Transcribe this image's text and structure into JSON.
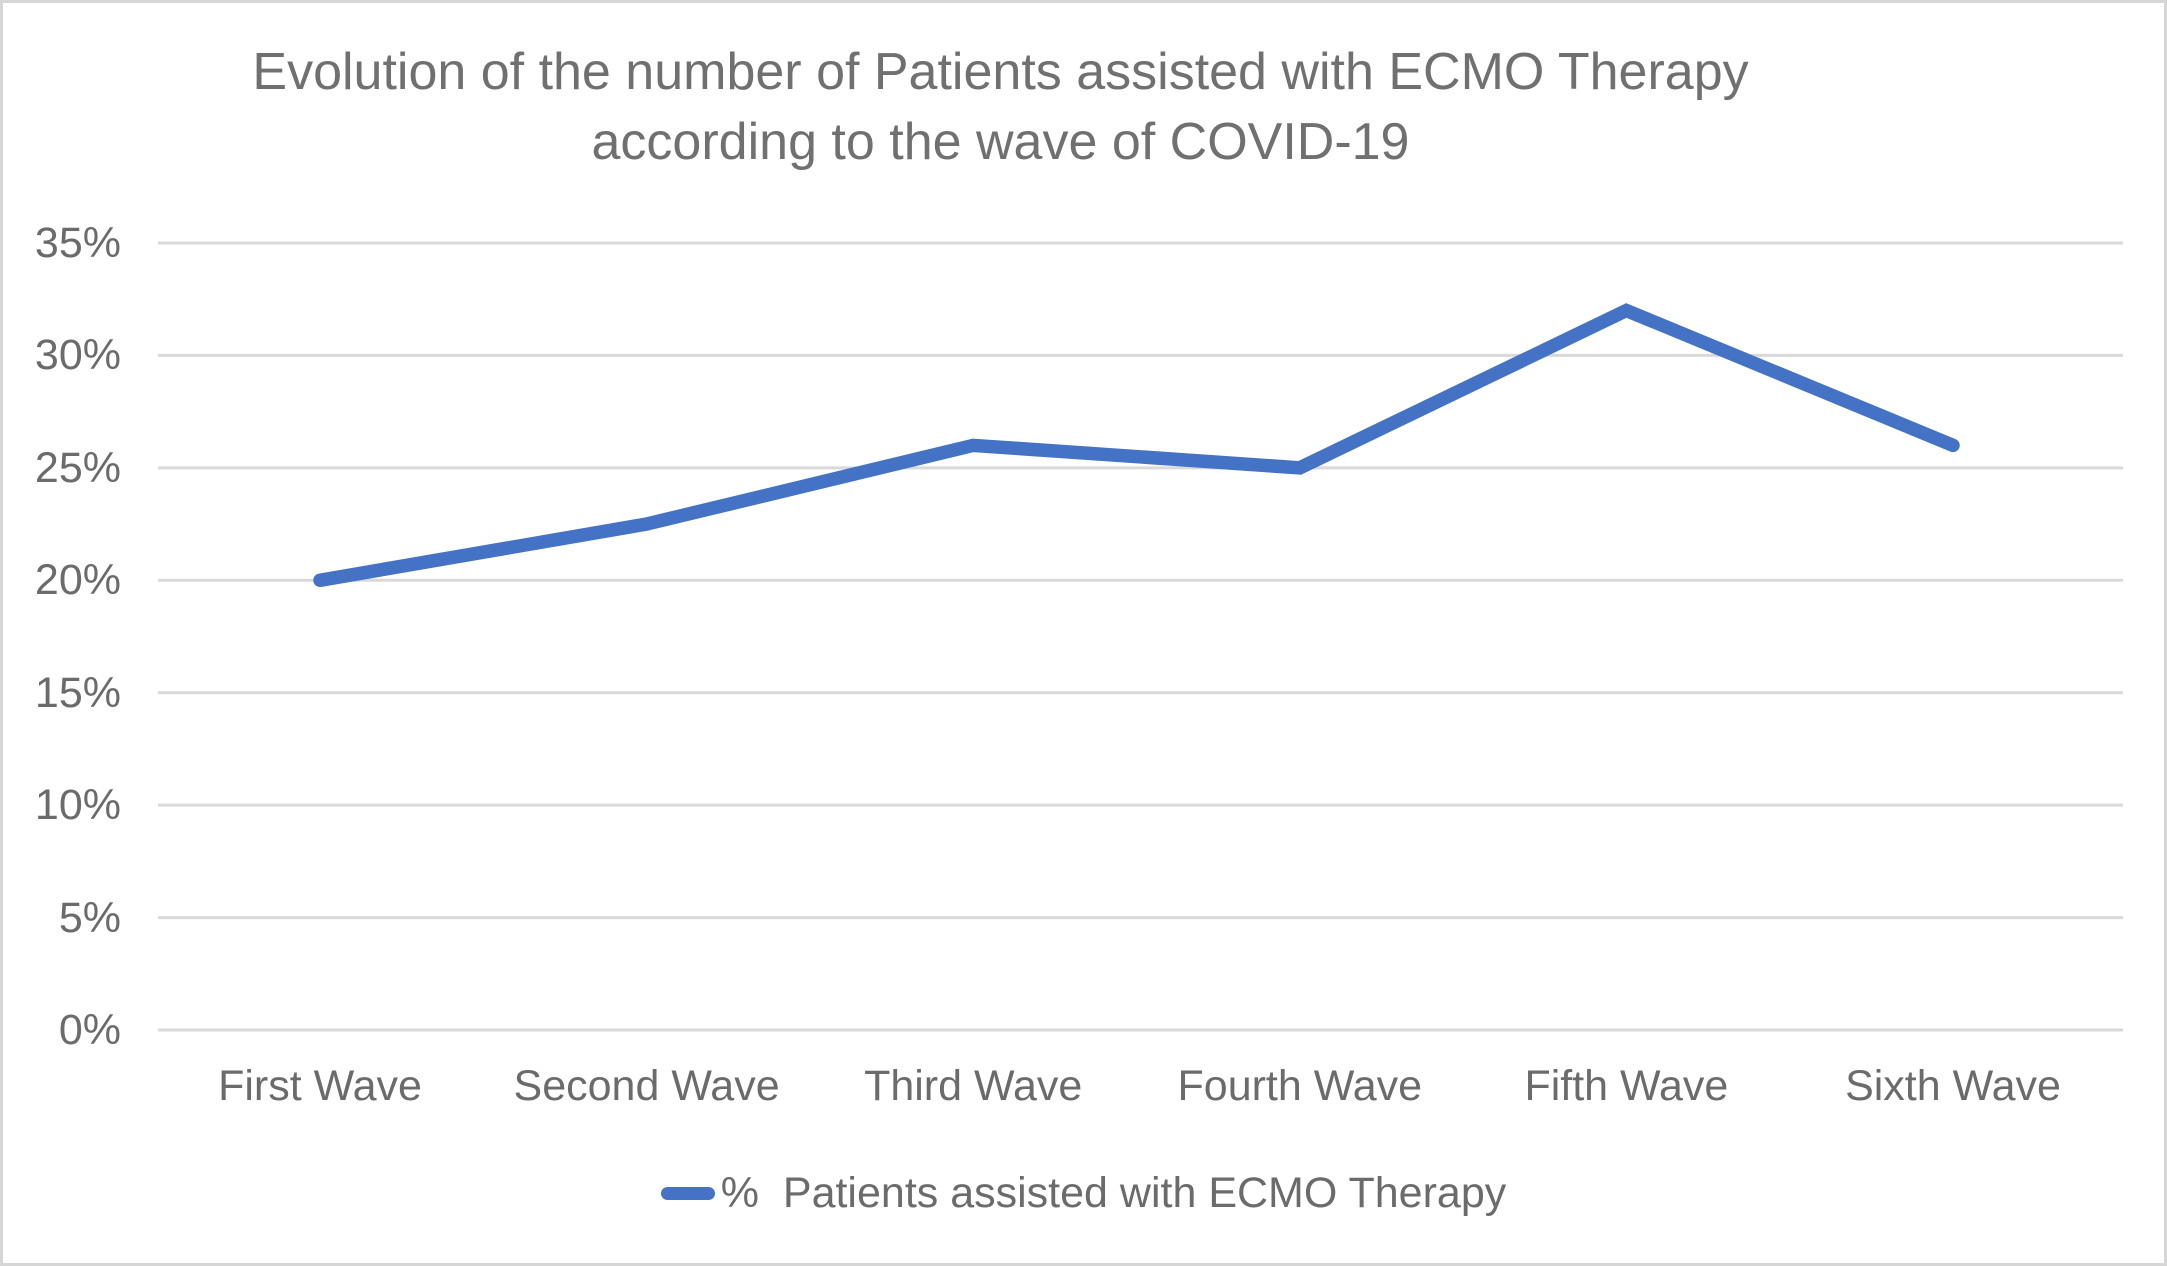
{
  "chart_data": {
    "type": "line",
    "title": "Evolution of the number of Patients assisted with ECMO Therapy according to the wave of COVID-19",
    "title_lines": [
      "Evolution of the number of Patients assisted with ECMO Therapy",
      "according to the wave of COVID-19"
    ],
    "categories": [
      "First Wave",
      "Second Wave",
      "Third Wave",
      "Fourth Wave",
      "Fifth Wave",
      "Sixth Wave"
    ],
    "series": [
      {
        "name": "%  Patients assisted with ECMO Therapy",
        "values": [
          20,
          22.5,
          26,
          25,
          32,
          26
        ]
      }
    ],
    "y_ticks": [
      "0%",
      "5%",
      "10%",
      "15%",
      "20%",
      "25%",
      "30%",
      "35%"
    ],
    "ylim": [
      0,
      35
    ],
    "xlabel": "",
    "ylabel": "",
    "grid": "horizontal",
    "legend_position": "bottom",
    "colors": {
      "line": "#4472C4",
      "gridline": "#D9D9D9",
      "title_text": "#707070",
      "axis_text": "#6b6b6b",
      "background": "#ffffff",
      "border": "#d6d6d6"
    }
  },
  "legend": {
    "label": "%  Patients assisted with ECMO Therapy"
  }
}
